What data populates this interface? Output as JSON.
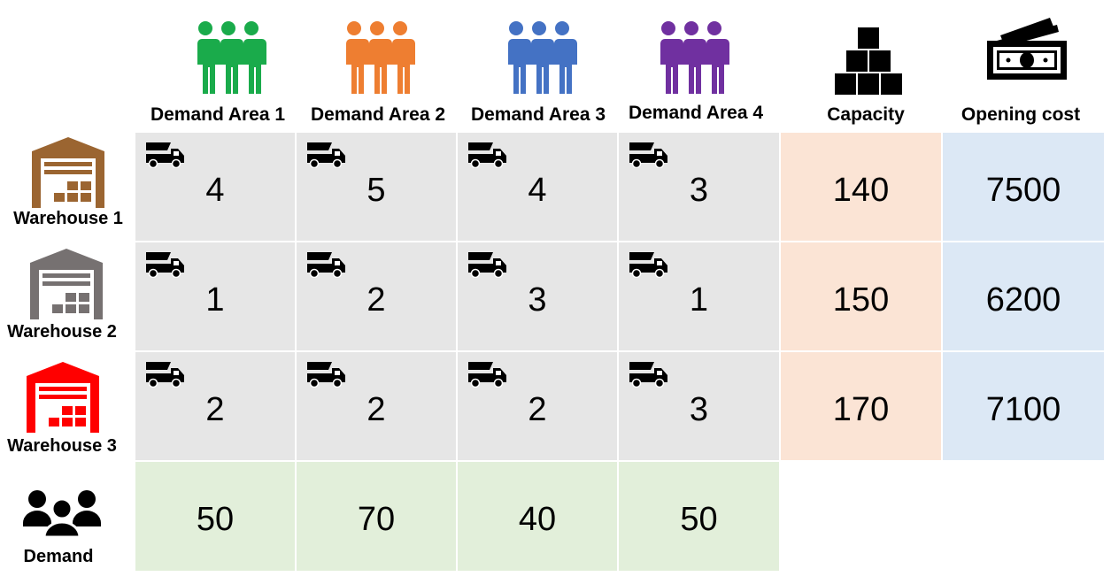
{
  "header": {
    "columns": [
      {
        "label": "Demand Area 1",
        "icon": "people-group-icon",
        "color": "#1aab4b"
      },
      {
        "label": "Demand Area 2",
        "icon": "people-group-icon",
        "color": "#ee7e31"
      },
      {
        "label": "Demand Area 3",
        "icon": "people-group-icon",
        "color": "#4472c4"
      },
      {
        "label": "Demand Area 4",
        "icon": "people-group-icon",
        "color": "#7030a0"
      },
      {
        "label": "Capacity",
        "icon": "boxes-stack-icon",
        "color": "#000000"
      },
      {
        "label": "Opening cost",
        "icon": "banknote-icon",
        "color": "#000000"
      }
    ]
  },
  "rows": [
    {
      "label": "Warehouse 1",
      "icon_color": "#9b6531",
      "costs": [
        "4",
        "5",
        "4",
        "3"
      ],
      "capacity": "140",
      "opening_cost": "7500"
    },
    {
      "label": "Warehouse 2",
      "icon_color": "#767171",
      "costs": [
        "1",
        "2",
        "3",
        "1"
      ],
      "capacity": "150",
      "opening_cost": "6200"
    },
    {
      "label": "Warehouse 3",
      "icon_color": "#ff0000",
      "costs": [
        "2",
        "2",
        "2",
        "3"
      ],
      "capacity": "170",
      "opening_cost": "7100"
    }
  ],
  "demand": {
    "label": "Demand",
    "values": [
      "50",
      "70",
      "40",
      "50"
    ]
  },
  "colors": {
    "transport_cost_cell": "#e6e6e6",
    "capacity_cell": "#fbe4d5",
    "opening_cost_cell": "#dce8f5",
    "demand_cell": "#e2efda"
  }
}
